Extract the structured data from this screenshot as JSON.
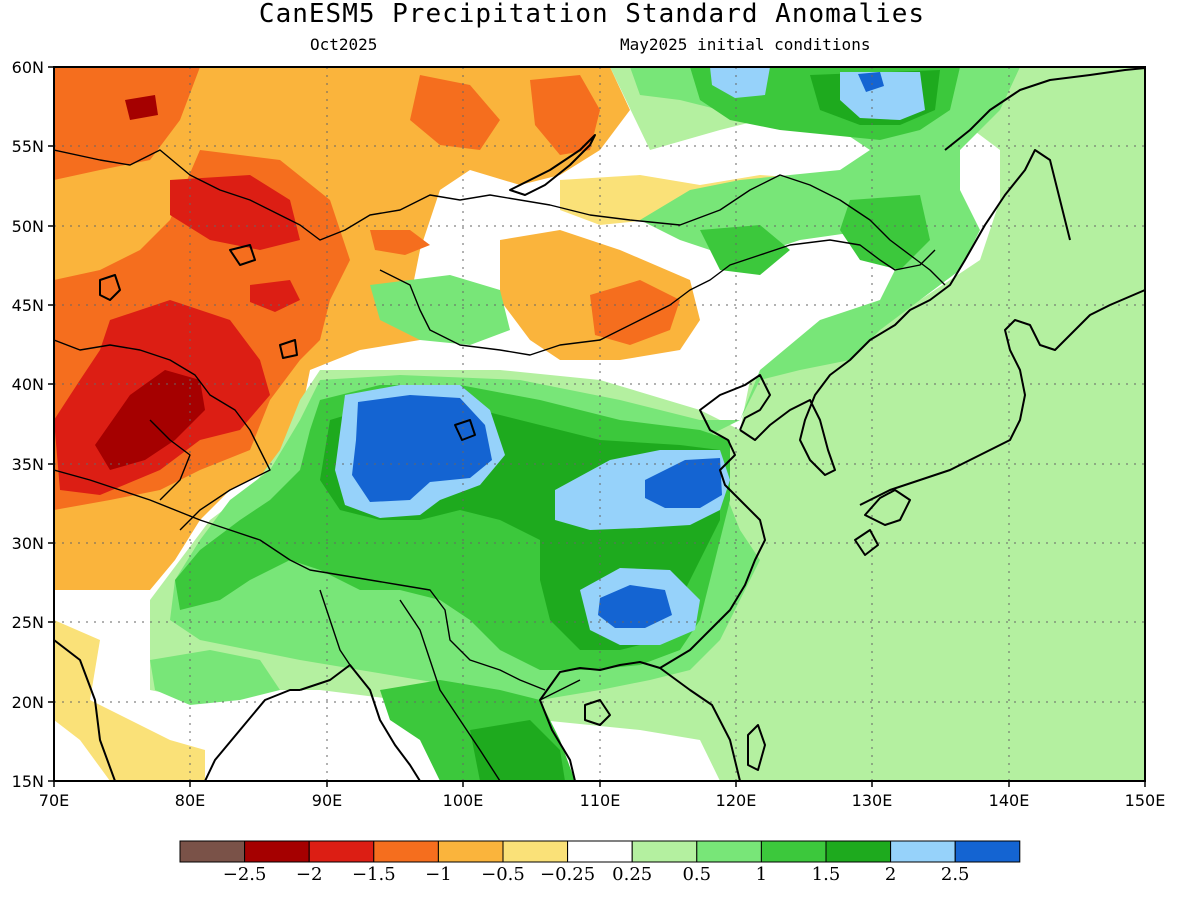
{
  "title": "CanESM5 Precipitation Standard Anomalies",
  "left_subtitle": "Oct2025",
  "right_subtitle": "May2025 initial conditions",
  "lon_ticks": [
    "70E",
    "80E",
    "90E",
    "100E",
    "110E",
    "120E",
    "130E",
    "140E",
    "150E"
  ],
  "lat_ticks": [
    "60N",
    "55N",
    "50N",
    "45N",
    "40N",
    "35N",
    "30N",
    "25N",
    "20N",
    "15N"
  ],
  "extent": {
    "lon": [
      70,
      150
    ],
    "lat": [
      15,
      60
    ]
  },
  "colorbar": {
    "colors": [
      "#7a5248",
      "#a50000",
      "#dc1e14",
      "#f56e1e",
      "#fab43c",
      "#fae178",
      "#ffffff",
      "#b4f0a0",
      "#78e678",
      "#3cc83c",
      "#1eaa1e",
      "#96d2fa",
      "#1464d2"
    ],
    "labels": [
      "-2.5",
      "-2",
      "-1.5",
      "-1",
      "-0.5",
      "-0.25",
      "0.25",
      "0.5",
      "1",
      "1.5",
      "2",
      "2.5"
    ]
  },
  "colors": {
    "dry_strong": "#a50000",
    "dry_red": "#dc1e14",
    "dry_orange": "#f56e1e",
    "dry_light": "#fab43c",
    "dry_yellow": "#fae178",
    "neutral": "#ffffff",
    "wet_pale": "#b4f0a0",
    "wet_light": "#78e678",
    "wet_mid": "#3cc83c",
    "wet_dark": "#1eaa1e",
    "wet_lightblue": "#96d2fa",
    "wet_blue": "#1464d2"
  }
}
